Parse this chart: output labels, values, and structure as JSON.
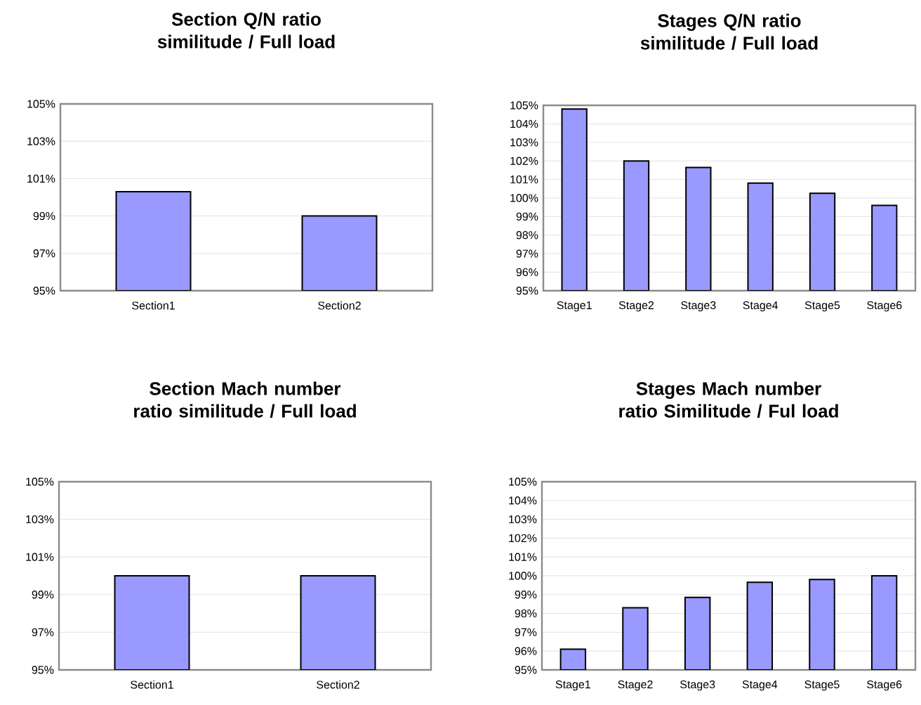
{
  "chart_data": [
    {
      "type": "bar",
      "title": "Section Q/N ratio similitude / Full load",
      "categories": [
        "Section1",
        "Section2"
      ],
      "values": [
        100.3,
        99.0
      ],
      "color": "#9999ff",
      "ylim": [
        95,
        105
      ],
      "yticks": [
        {
          "value": 95,
          "label": "95%"
        },
        {
          "value": 97,
          "label": "97%"
        },
        {
          "value": 99,
          "label": "99%"
        },
        {
          "value": 101,
          "label": "101%"
        },
        {
          "value": 103,
          "label": "103%"
        },
        {
          "value": 105,
          "label": "105%"
        }
      ],
      "grid": "y"
    },
    {
      "type": "bar",
      "title": "Stages Q/N ratio similitude / Full load",
      "categories": [
        "Stage1",
        "Stage2",
        "Stage3",
        "Stage4",
        "Stage5",
        "Stage6"
      ],
      "values": [
        104.8,
        102.0,
        101.65,
        100.8,
        100.25,
        99.6
      ],
      "color": "#9999ff",
      "ylim": [
        95,
        105
      ],
      "yticks": [
        {
          "value": 95,
          "label": "95%"
        },
        {
          "value": 96,
          "label": "96%"
        },
        {
          "value": 97,
          "label": "97%"
        },
        {
          "value": 98,
          "label": "98%"
        },
        {
          "value": 99,
          "label": "99%"
        },
        {
          "value": 100,
          "label": "100%"
        },
        {
          "value": 101,
          "label": "101%"
        },
        {
          "value": 102,
          "label": "102%"
        },
        {
          "value": 103,
          "label": "103%"
        },
        {
          "value": 104,
          "label": "104%"
        },
        {
          "value": 105,
          "label": "105%"
        }
      ],
      "grid": "y"
    },
    {
      "type": "bar",
      "title": "Section Mach number ratio similitude / Full load",
      "categories": [
        "Section1",
        "Section2"
      ],
      "values": [
        100.0,
        100.0
      ],
      "color": "#9999ff",
      "ylim": [
        95,
        105
      ],
      "yticks": [
        {
          "value": 95,
          "label": "95%"
        },
        {
          "value": 97,
          "label": "97%"
        },
        {
          "value": 99,
          "label": "99%"
        },
        {
          "value": 101,
          "label": "101%"
        },
        {
          "value": 103,
          "label": "103%"
        },
        {
          "value": 105,
          "label": "105%"
        }
      ],
      "grid": "y"
    },
    {
      "type": "bar",
      "title": "Stages Mach number ratio Similitude / Ful load",
      "categories": [
        "Stage1",
        "Stage2",
        "Stage3",
        "Stage4",
        "Stage5",
        "Stage6"
      ],
      "values": [
        96.1,
        98.3,
        98.85,
        99.65,
        99.8,
        100.0
      ],
      "color": "#9999ff",
      "ylim": [
        95,
        105
      ],
      "yticks": [
        {
          "value": 95,
          "label": "95%"
        },
        {
          "value": 96,
          "label": "96%"
        },
        {
          "value": 97,
          "label": "97%"
        },
        {
          "value": 98,
          "label": "98%"
        },
        {
          "value": 99,
          "label": "99%"
        },
        {
          "value": 100,
          "label": "100%"
        },
        {
          "value": 101,
          "label": "101%"
        },
        {
          "value": 102,
          "label": "102%"
        },
        {
          "value": 103,
          "label": "103%"
        },
        {
          "value": 104,
          "label": "104%"
        },
        {
          "value": 105,
          "label": "105%"
        }
      ],
      "grid": "y"
    }
  ]
}
